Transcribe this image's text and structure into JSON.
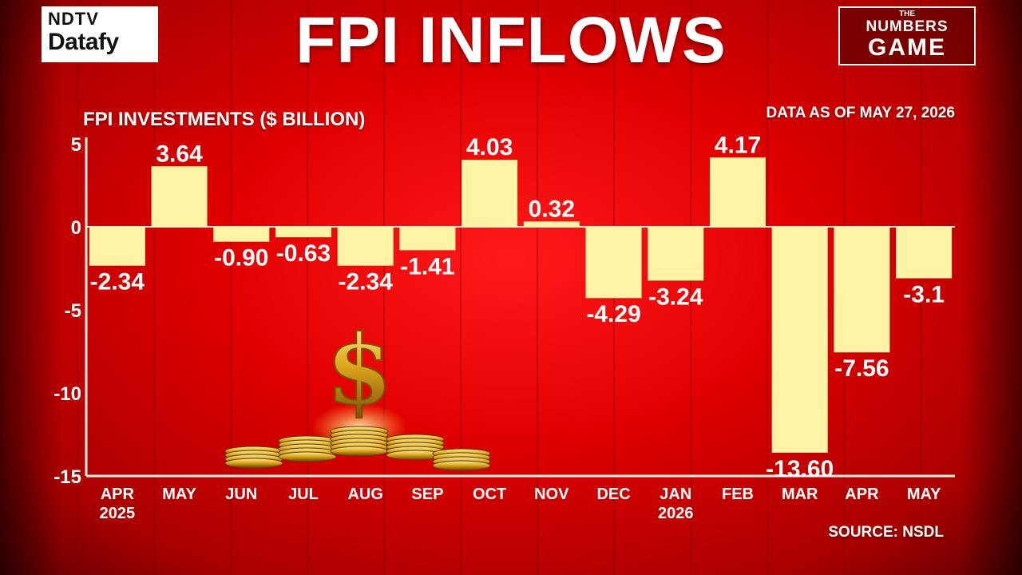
{
  "logo": {
    "line1": "NDTV",
    "line2": "Datafy"
  },
  "badge": {
    "line1": "THE",
    "line2": "NUMBERS",
    "line3": "GAME"
  },
  "source": "SOURCE: NSDL",
  "chart_data": {
    "type": "bar",
    "title": "FPI INFLOWS",
    "ylabel": "FPI INVESTMENTS ($ BILLION)",
    "subtitle": "DATA AS OF MAY 27, 2026",
    "categories": [
      "APR 2025",
      "MAY",
      "JUN",
      "JUL",
      "AUG",
      "SEP",
      "OCT",
      "NOV",
      "DEC",
      "JAN 2026",
      "FEB",
      "MAR",
      "APR",
      "MAY"
    ],
    "values": [
      -2.34,
      3.64,
      -0.9,
      -0.63,
      -2.34,
      -1.41,
      4.03,
      0.32,
      -4.29,
      -3.24,
      4.17,
      -13.6,
      -7.56,
      -3.1
    ],
    "value_labels": [
      "-2.34",
      "3.64",
      "-0.90",
      "-0.63",
      "-2.34",
      "-1.41",
      "4.03",
      "0.32",
      "-4.29",
      "-3.24",
      "4.17",
      "-13.60",
      "-7.56",
      "-3.1"
    ],
    "ylim": [
      -15,
      5
    ],
    "yticks": [
      5,
      0,
      -5,
      -10,
      -15
    ],
    "grid": false,
    "bar_color": "#fff3a6"
  }
}
